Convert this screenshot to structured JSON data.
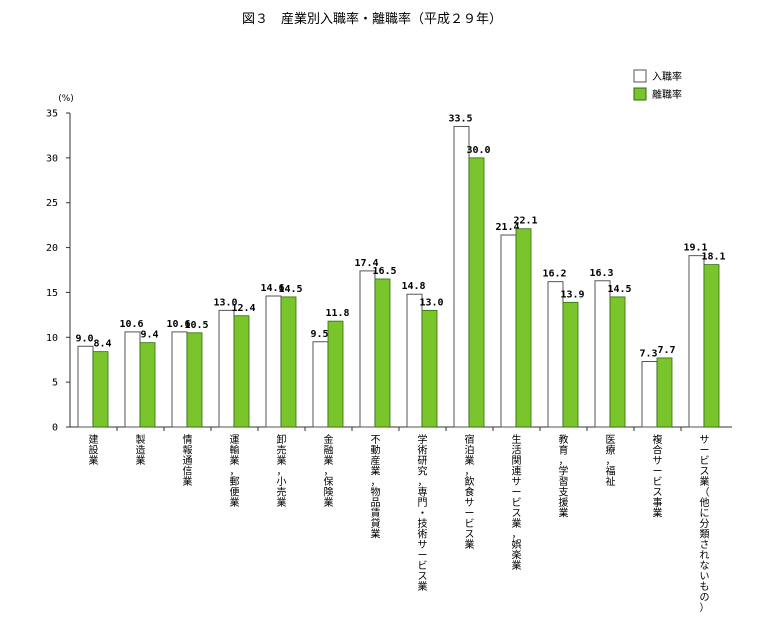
{
  "chart_data": {
    "type": "bar",
    "title": "図３　産業別入職率・離職率（平成２９年）",
    "ylabel": "(%)",
    "ylim": [
      0,
      35
    ],
    "yticks": [
      0,
      5,
      10,
      15,
      20,
      25,
      30,
      35
    ],
    "grid": false,
    "legend_position": "top-right",
    "categories": [
      "建設業",
      "製造業",
      "情報通信業",
      "運輸業，郵便業",
      "卸売業，小売業",
      "金融業，保険業",
      "不動産業，物品賃貸業",
      "学術研究，専門・技術サービス業",
      "宿泊業，飲食サービス業",
      "生活関連サービス業，娯楽業",
      "教育，学習支援業",
      "医療，福祉",
      "複合サービス事業",
      "サービス業（他に分類されないもの）"
    ],
    "series": [
      {
        "name": "入職率",
        "color": "#ffffff",
        "stroke": "#555555",
        "values": [
          9.0,
          10.6,
          10.6,
          13.0,
          14.6,
          9.5,
          17.4,
          14.8,
          33.5,
          21.4,
          16.2,
          16.3,
          7.3,
          19.1
        ]
      },
      {
        "name": "離職率",
        "color": "#7ac52c",
        "stroke": "#2f6b0e",
        "values": [
          8.4,
          9.4,
          10.5,
          12.4,
          14.5,
          11.8,
          16.5,
          13.0,
          30.0,
          22.1,
          13.9,
          14.5,
          7.7,
          18.1
        ]
      }
    ]
  }
}
